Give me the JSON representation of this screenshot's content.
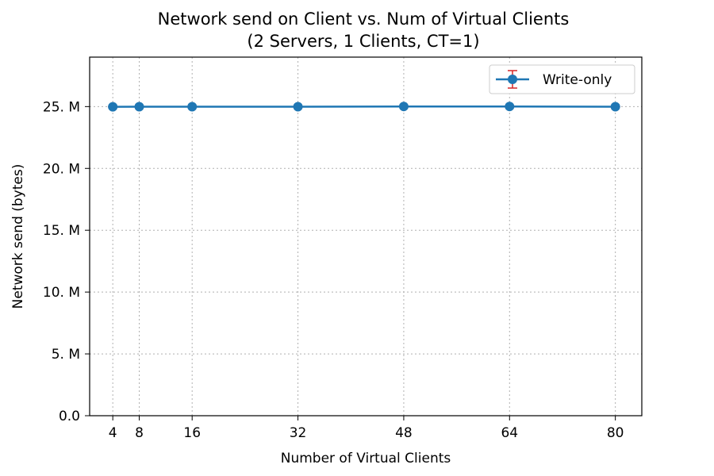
{
  "chart_data": {
    "type": "line",
    "title": "Network send on Client vs. Num of Virtual Clients",
    "subtitle": "(2 Servers, 1 Clients, CT=1)",
    "xlabel": "Number of Virtual Clients",
    "ylabel": "Network send (bytes)",
    "x": [
      4,
      8,
      16,
      32,
      48,
      64,
      80
    ],
    "xlim": [
      0.5,
      84
    ],
    "ylim": [
      0,
      29000000
    ],
    "xticks": [
      4,
      8,
      16,
      32,
      48,
      64,
      80
    ],
    "xtick_labels": [
      "4",
      "8",
      "16",
      "32",
      "48",
      "64",
      "80"
    ],
    "yticks": [
      0,
      5000000,
      10000000,
      15000000,
      20000000,
      25000000
    ],
    "ytick_labels": [
      "0.0",
      "5. M",
      "10. M",
      "15. M",
      "20. M",
      "25. M"
    ],
    "grid": true,
    "legend_position": "top-right",
    "series": [
      {
        "name": "Write-only",
        "values": [
          24980000,
          24990000,
          24990000,
          24990000,
          25010000,
          25010000,
          24990000
        ],
        "color": "#1f77b4",
        "errorbar_color": "#d62728"
      }
    ]
  }
}
